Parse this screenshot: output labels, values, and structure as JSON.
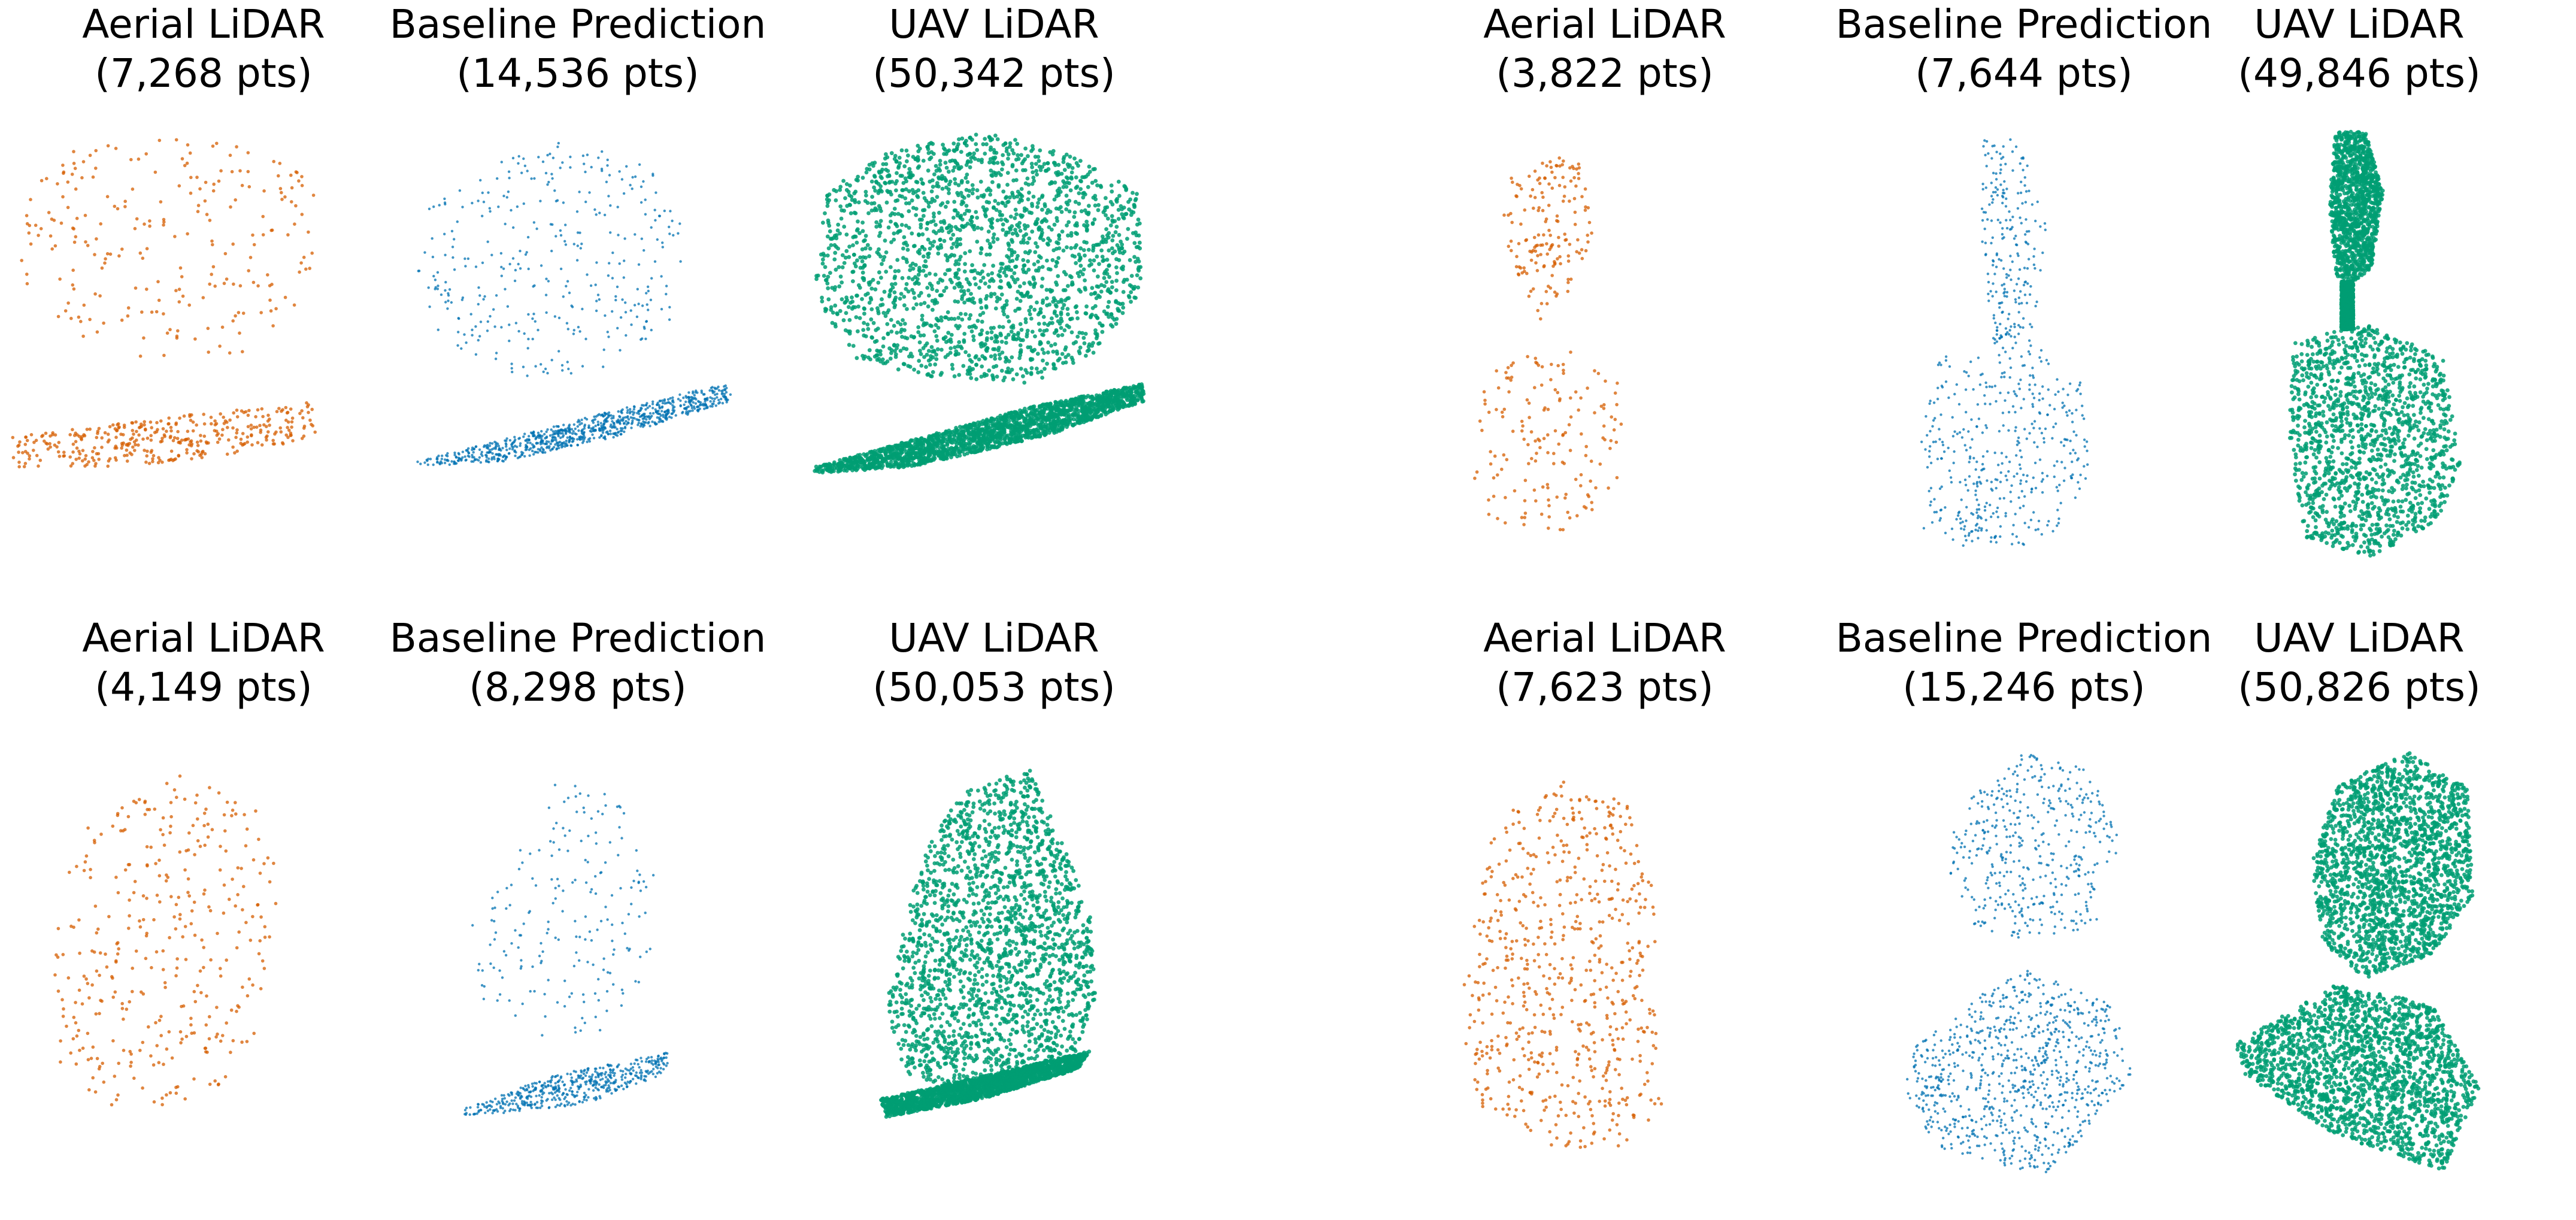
{
  "chart_data": {
    "type": "scatter",
    "description_kind": "3d point cloud comparison panels",
    "colors": {
      "aerial": "#d55e00",
      "prediction": "#0072b2",
      "uav": "#009e73"
    },
    "groups": [
      {
        "panels": [
          {
            "title": "Aerial LiDAR",
            "count_label": "(7,268 pts)",
            "points": 7268,
            "series": "aerial"
          },
          {
            "title": "Baseline Prediction",
            "count_label": "(14,536 pts)",
            "points": 14536,
            "series": "prediction"
          },
          {
            "title": "UAV LiDAR",
            "count_label": "(50,342 pts)",
            "points": 50342,
            "series": "uav"
          }
        ]
      },
      {
        "panels": [
          {
            "title": "Aerial LiDAR",
            "count_label": "(3,822 pts)",
            "points": 3822,
            "series": "aerial"
          },
          {
            "title": "Baseline Prediction",
            "count_label": "(7,644 pts)",
            "points": 7644,
            "series": "prediction"
          },
          {
            "title": "UAV LiDAR",
            "count_label": "(49,846 pts)",
            "points": 49846,
            "series": "uav"
          }
        ]
      },
      {
        "panels": [
          {
            "title": "Aerial LiDAR",
            "count_label": "(4,149 pts)",
            "points": 4149,
            "series": "aerial"
          },
          {
            "title": "Baseline Prediction",
            "count_label": "(8,298 pts)",
            "points": 8298,
            "series": "prediction"
          },
          {
            "title": "UAV LiDAR",
            "count_label": "(50,053 pts)",
            "points": 50053,
            "series": "uav"
          }
        ]
      },
      {
        "panels": [
          {
            "title": "Aerial LiDAR",
            "count_label": "(7,623 pts)",
            "points": 7623,
            "series": "aerial"
          },
          {
            "title": "Baseline Prediction",
            "count_label": "(15,246 pts)",
            "points": 15246,
            "series": "prediction"
          },
          {
            "title": "UAV LiDAR",
            "count_label": "(50,826 pts)",
            "points": 50826,
            "series": "uav"
          }
        ]
      }
    ]
  }
}
